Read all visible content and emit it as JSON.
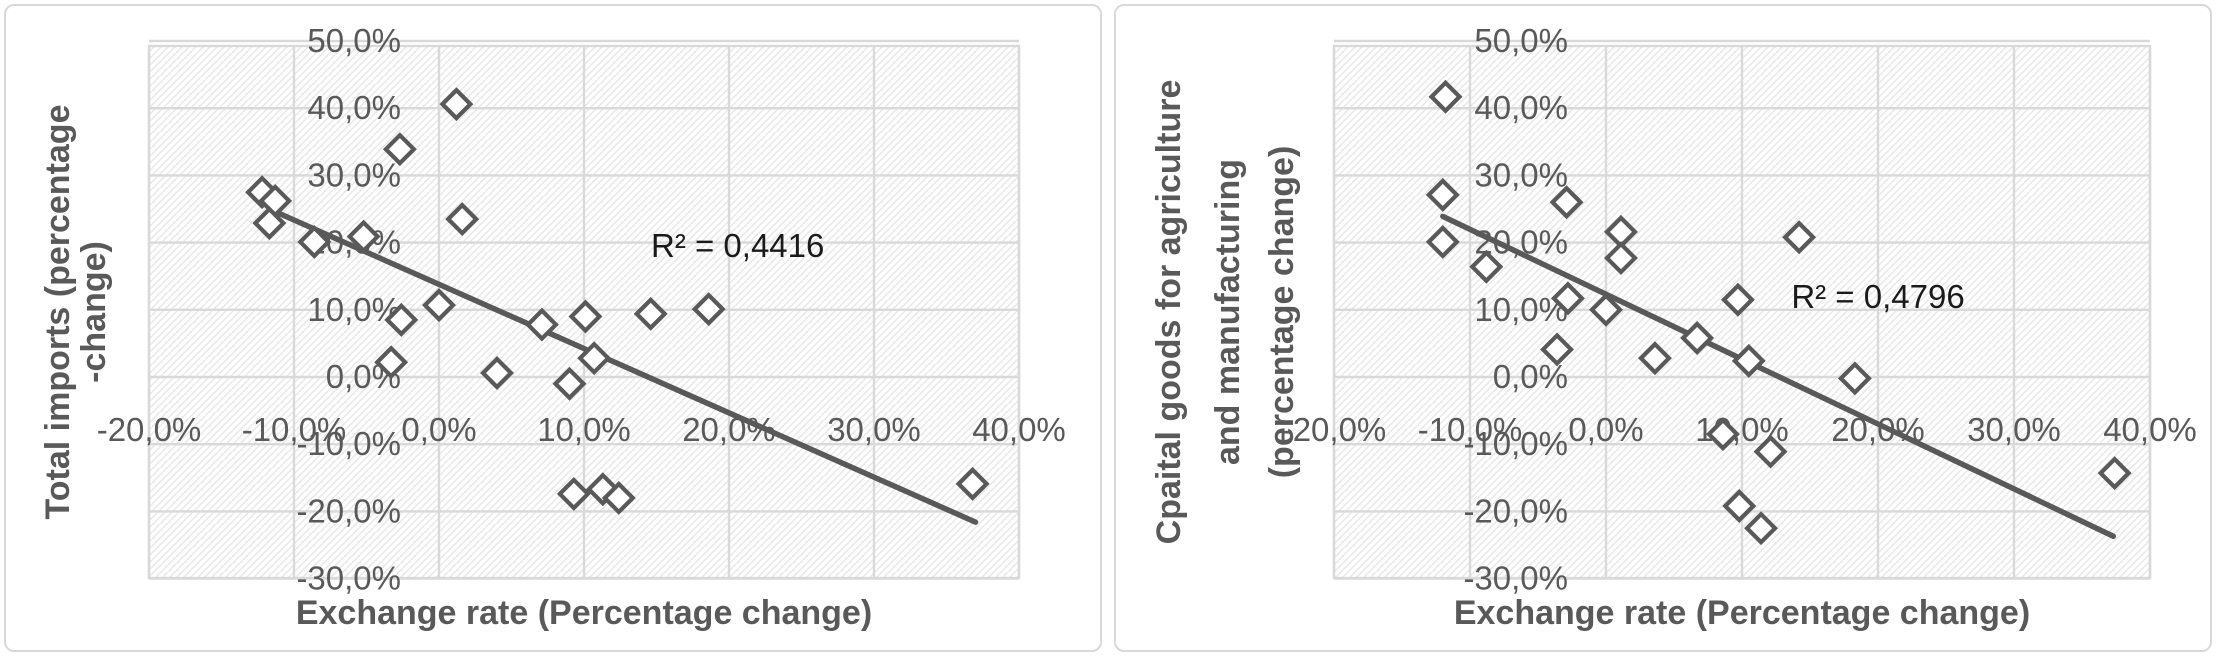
{
  "page": {
    "background": "#ffffff",
    "description_labels": {
      "left_chart": "Total imports vs exchange rate scatter",
      "right_chart": "Capital goods imports vs exchange rate scatter"
    }
  },
  "colors": {
    "marker": "#595959",
    "trendline": "#595959",
    "axis_text": "#595959",
    "r_squared_text": "#1a1a1a",
    "gridline": "#d9d9d9",
    "chart_border": "#d9d9d9",
    "plot_hatch_line": "#e8e8e8",
    "plot_background": "#ffffff"
  },
  "chart_data": [
    {
      "type": "scatter",
      "title": "",
      "xlabel": "Exchange rate (Percentage change)",
      "ylabel_lines": [
        "Total imports (percentage",
        "-change)"
      ],
      "r_squared": {
        "text": "R² = 0,4416",
        "x": 20.6,
        "y": 19.5
      },
      "xlim": [
        -20,
        40
      ],
      "ylim": [
        -30,
        50
      ],
      "grid": true,
      "legend": "none",
      "x_ticks": [
        -20,
        -10,
        0,
        10,
        20,
        30,
        40
      ],
      "x_tick_labels": [
        "-20,0%",
        "-10,0%",
        "0,0%",
        "10,0%",
        "20,0%",
        "30,0%",
        "40,0%"
      ],
      "y_ticks": [
        50,
        40,
        30,
        20,
        10,
        0,
        -10,
        -20,
        -30
      ],
      "y_tick_labels": [
        "50,0%",
        "40,0%",
        "30,0%",
        "20,0%",
        "10,0%",
        "0,0%",
        "-10,0%",
        "-20,0%",
        "-30,0%"
      ],
      "points": [
        [
          1.2,
          40.6
        ],
        [
          -2.7,
          33.9
        ],
        [
          -12.2,
          27.5
        ],
        [
          -11.3,
          26.2
        ],
        [
          -11.7,
          22.9
        ],
        [
          -8.6,
          20.1
        ],
        [
          -5.2,
          20.9
        ],
        [
          1.6,
          23.5
        ],
        [
          0.0,
          10.7
        ],
        [
          -2.6,
          8.5
        ],
        [
          -3.3,
          2.2
        ],
        [
          4.0,
          0.6
        ],
        [
          7.1,
          7.8
        ],
        [
          10.1,
          9.0
        ],
        [
          14.6,
          9.4
        ],
        [
          18.6,
          10.1
        ],
        [
          10.7,
          2.8
        ],
        [
          9.0,
          -1.0
        ],
        [
          9.3,
          -17.4
        ],
        [
          11.3,
          -16.7
        ],
        [
          12.4,
          -18.0
        ],
        [
          36.8,
          -15.9
        ]
      ],
      "trendline": {
        "x1": -11.4,
        "y1": 24.7,
        "x2": 37.0,
        "y2": -21.6
      }
    },
    {
      "type": "scatter",
      "title": "",
      "xlabel": "Exchange rate (Percentage change)",
      "ylabel_lines": [
        "Cpaital goods for agriculture",
        "and manufacturing",
        "(percentage change)"
      ],
      "r_squared": {
        "text": "R² = 0,4796",
        "x": 20.0,
        "y": 11.9
      },
      "xlim": [
        -20,
        40
      ],
      "ylim": [
        -30,
        50
      ],
      "grid": true,
      "legend": "none",
      "x_ticks": [
        -20,
        -10,
        0,
        10,
        20,
        30,
        40
      ],
      "x_tick_labels": [
        "-20,0%",
        "-10,0%",
        "0,0%",
        "10,0%",
        "20,0%",
        "30,0%",
        "40,0%"
      ],
      "y_ticks": [
        50,
        40,
        30,
        20,
        10,
        0,
        -10,
        -20,
        -30
      ],
      "y_tick_labels": [
        "50,0%",
        "40,0%",
        "30,0%",
        "20,0%",
        "10,0%",
        "0,0%",
        "-10,0%",
        "-20,0%",
        "-30,0%"
      ],
      "points": [
        [
          -11.8,
          41.7
        ],
        [
          -12.0,
          27.1
        ],
        [
          -2.9,
          26.0
        ],
        [
          -12.0,
          20.1
        ],
        [
          -8.8,
          16.4
        ],
        [
          1.1,
          21.6
        ],
        [
          1.1,
          17.7
        ],
        [
          14.2,
          20.8
        ],
        [
          -2.8,
          11.7
        ],
        [
          0.0,
          10.0
        ],
        [
          9.7,
          11.5
        ],
        [
          -3.6,
          4.1
        ],
        [
          3.6,
          2.8
        ],
        [
          6.7,
          5.8
        ],
        [
          10.5,
          2.4
        ],
        [
          18.3,
          -0.2
        ],
        [
          8.6,
          -8.5
        ],
        [
          12.1,
          -11.1
        ],
        [
          9.8,
          -19.2
        ],
        [
          11.4,
          -22.5
        ],
        [
          37.4,
          -14.3
        ]
      ],
      "trendline": {
        "x1": -12.0,
        "y1": 23.9,
        "x2": 37.3,
        "y2": -23.7
      }
    }
  ]
}
